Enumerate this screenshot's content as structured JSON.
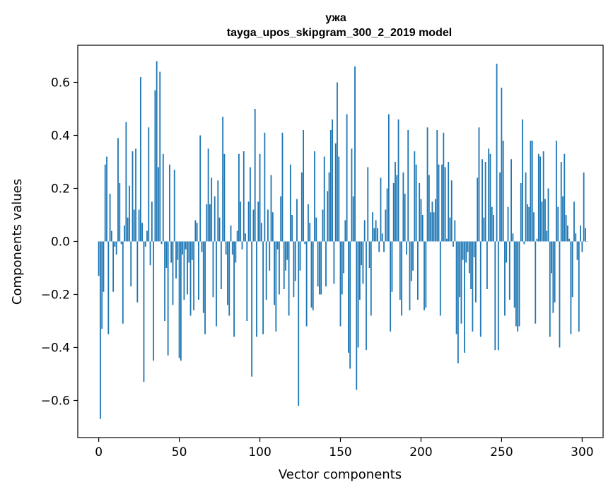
{
  "chart_data": {
    "type": "bar",
    "title": "ужа",
    "subtitle": "tayga_upos_skipgram_300_2_2019 model",
    "xlabel": "Vector components",
    "ylabel": "Components values",
    "xlim": [
      -13,
      313
    ],
    "ylim": [
      -0.74,
      0.74
    ],
    "xticks": [
      0,
      50,
      100,
      150,
      200,
      250,
      300
    ],
    "xtick_labels": [
      "0",
      "50",
      "100",
      "150",
      "200",
      "250",
      "300"
    ],
    "yticks": [
      -0.6,
      -0.4,
      -0.2,
      0.0,
      0.2,
      0.4,
      0.6
    ],
    "ytick_labels": [
      "−0.6",
      "−0.4",
      "−0.2",
      "0.0",
      "0.2",
      "0.4",
      "0.6"
    ],
    "grid": false,
    "bar_color": "#1f77b4",
    "values": [
      -0.13,
      -0.67,
      -0.33,
      -0.19,
      0.29,
      0.32,
      -0.35,
      0.18,
      0.04,
      -0.19,
      -0.02,
      -0.05,
      0.39,
      0.22,
      -0.01,
      -0.31,
      0.06,
      0.45,
      0.09,
      0.21,
      -0.17,
      0.34,
      0.12,
      0.35,
      -0.23,
      0.12,
      0.62,
      0.07,
      -0.53,
      -0.02,
      0.04,
      0.43,
      -0.09,
      0.15,
      -0.45,
      0.57,
      0.68,
      0.28,
      0.64,
      -0.01,
      0.33,
      -0.3,
      -0.1,
      -0.43,
      0.29,
      -0.08,
      -0.24,
      0.27,
      -0.14,
      -0.07,
      -0.44,
      -0.45,
      -0.05,
      -0.22,
      -0.03,
      -0.2,
      -0.08,
      -0.28,
      -0.07,
      -0.26,
      0.08,
      0.07,
      -0.22,
      0.4,
      -0.04,
      -0.27,
      -0.35,
      0.14,
      0.35,
      0.14,
      0.24,
      -0.21,
      0.17,
      -0.32,
      0.23,
      0.09,
      -0.18,
      0.47,
      0.33,
      -0.05,
      -0.24,
      -0.28,
      0.06,
      -0.05,
      -0.36,
      -0.08,
      0.04,
      0.33,
      0.15,
      -0.03,
      0.34,
      0.03,
      -0.3,
      0.15,
      0.28,
      -0.51,
      0.12,
      0.5,
      -0.36,
      0.15,
      0.33,
      0.07,
      -0.35,
      0.41,
      -0.22,
      0.12,
      -0.11,
      0.25,
      0.11,
      -0.24,
      -0.34,
      -0.03,
      -0.2,
      0.17,
      0.41,
      -0.18,
      -0.11,
      -0.07,
      -0.28,
      0.29,
      0.1,
      -0.21,
      -0.15,
      0.16,
      -0.62,
      -0.11,
      0.26,
      0.42,
      -0.01,
      -0.32,
      0.14,
      0.07,
      -0.25,
      -0.26,
      0.34,
      0.09,
      -0.17,
      -0.2,
      -0.2,
      0.12,
      0.32,
      -0.17,
      0.19,
      0.26,
      0.42,
      0.46,
      -0.16,
      0.37,
      0.6,
      0.32,
      -0.32,
      -0.2,
      -0.12,
      0.08,
      0.48,
      -0.42,
      -0.48,
      0.35,
      0.17,
      0.66,
      -0.56,
      -0.4,
      -0.22,
      -0.09,
      -0.16,
      0.08,
      -0.41,
      0.28,
      -0.1,
      -0.28,
      0.11,
      0.05,
      0.08,
      0.05,
      -0.04,
      0.24,
      0.03,
      -0.04,
      0.12,
      0.2,
      0.48,
      -0.34,
      -0.19,
      0.22,
      0.3,
      0.25,
      0.46,
      -0.22,
      -0.28,
      0.26,
      0.18,
      -0.05,
      0.42,
      -0.26,
      -0.15,
      -0.11,
      0.34,
      0.29,
      -0.22,
      0.22,
      0.16,
      0.1,
      -0.26,
      -0.25,
      0.43,
      0.25,
      0.11,
      0.15,
      0.11,
      0.16,
      0.42,
      0.29,
      -0.28,
      0.29,
      0.41,
      0.28,
      0.01,
      0.3,
      0.09,
      0.23,
      -0.02,
      0.08,
      -0.35,
      -0.46,
      -0.21,
      -0.31,
      -0.07,
      -0.42,
      -0.08,
      -0.04,
      -0.12,
      -0.18,
      -0.34,
      -0.06,
      -0.23,
      0.24,
      0.43,
      -0.36,
      0.31,
      0.09,
      0.3,
      -0.18,
      0.35,
      0.33,
      0.13,
      0.1,
      -0.41,
      0.67,
      -0.41,
      0.26,
      0.58,
      0.38,
      -0.28,
      -0.08,
      0.13,
      -0.22,
      0.31,
      0.03,
      -0.25,
      -0.32,
      -0.34,
      -0.32,
      0.22,
      0.46,
      -0.01,
      0.26,
      0.14,
      0.13,
      0.38,
      0.38,
      0.11,
      -0.31,
      0.01,
      0.33,
      0.32,
      0.15,
      0.34,
      0.16,
      0.04,
      0.2,
      -0.36,
      -0.12,
      -0.27,
      -0.23,
      0.38,
      0.13,
      -0.4,
      0.3,
      0.17,
      0.33,
      0.1,
      0.06,
      0.01,
      -0.35,
      -0.21,
      0.15,
      0.03,
      -0.07,
      -0.34,
      0.06,
      -0.04,
      0.26,
      0.05,
      0.0
    ]
  }
}
